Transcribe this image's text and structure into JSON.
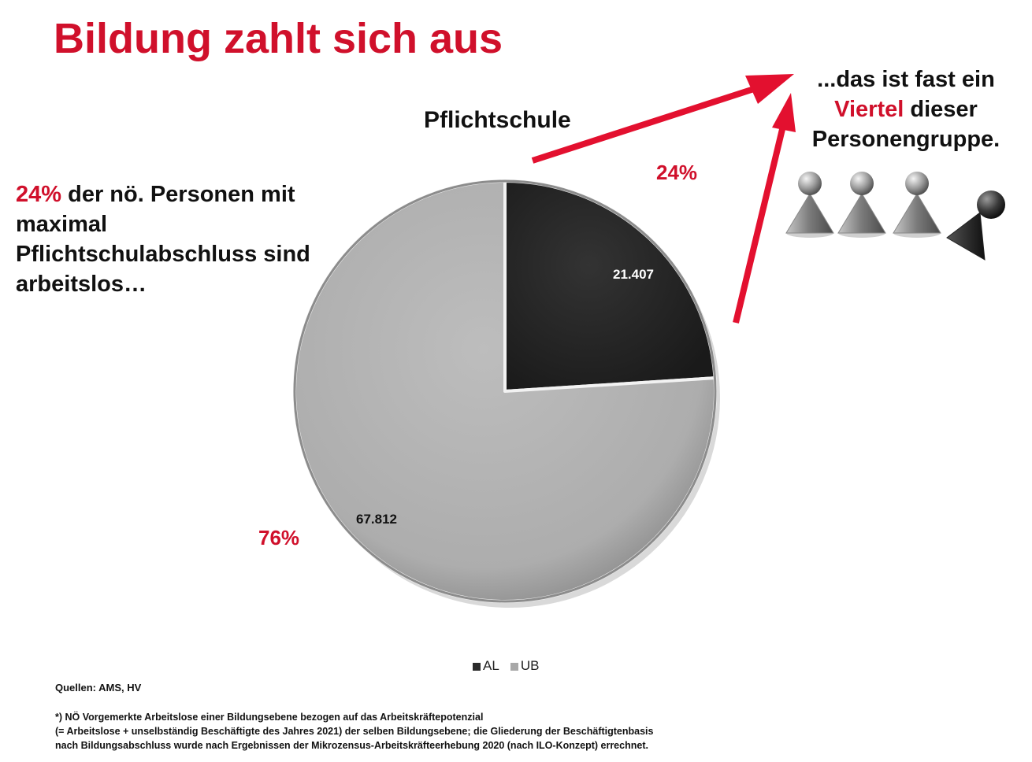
{
  "slide": {
    "title": "Bildung zahlt sich aus",
    "left_text": {
      "highlight": "24%",
      "rest": " der nö. Personen mit maximal Pflichtschulabschluss sind arbeitslos…"
    },
    "right_text": {
      "line1": "...das ist fast ein",
      "highlight": "Viertel",
      "line2_rest": " dieser",
      "line3": "Personengruppe."
    },
    "sources": "Quellen: AMS, HV",
    "footnote": [
      "*) NÖ Vorgemerkte Arbeitslose einer Bildungsebene bezogen auf das Arbeitskräftepotenzial",
      "(= Arbeitslose + unselbständig Beschäftigte des Jahres 2021) der selben Bildungsebene; die Gliederung der Beschäftigtenbasis",
      "nach Bildungsabschluss wurde nach Ergebnissen der Mikrozensus-Arbeitskräfteerhebung 2020 (nach ILO-Konzept) errechnet."
    ],
    "colors": {
      "accent": "#d0102b",
      "al": "#2b2b2b",
      "ub": "#b0b0b0"
    }
  },
  "chart_data": {
    "type": "pie",
    "title": "Pflichtschule",
    "categories": [
      "AL",
      "UB"
    ],
    "values": [
      21407,
      67812
    ],
    "value_labels": [
      "21.407",
      "67.812"
    ],
    "percent_labels": [
      "24%",
      "76%"
    ],
    "legend": {
      "position": "bottom",
      "entries": [
        "AL",
        "UB"
      ]
    }
  }
}
